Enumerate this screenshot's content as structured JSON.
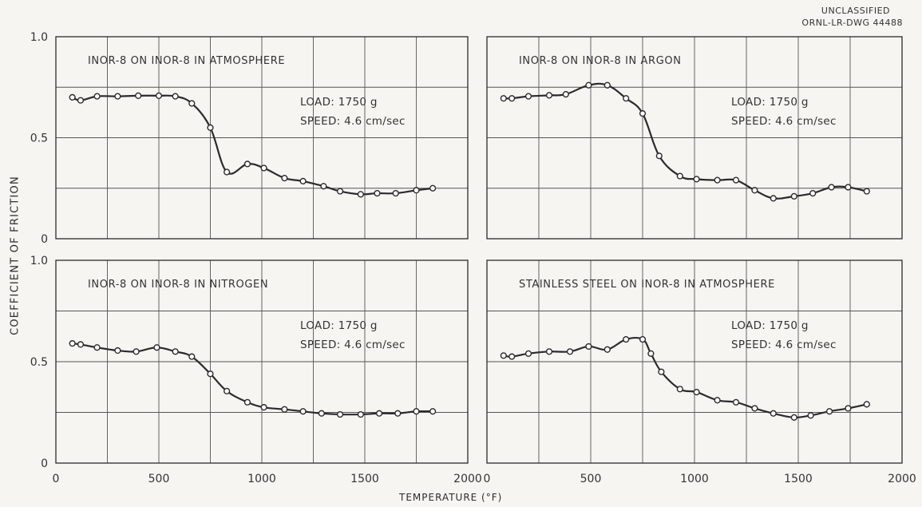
{
  "stamp": {
    "line1": "UNCLASSIFIED",
    "line2": "ORNL-LR-DWG 44488"
  },
  "ylabel": "COEFFICIENT OF FRICTION",
  "xlabel": "TEMPERATURE (°F)",
  "colors": {
    "background": "#f6f5f1",
    "ink": "#2b2b2b",
    "grid": "#555555"
  },
  "chart_data": [
    {
      "type": "line",
      "title": "INOR-8 ON INOR-8 IN ATMOSPHERE",
      "annotation": {
        "load": "LOAD: 1750 g",
        "speed": "SPEED: 4.6 cm/sec"
      },
      "xlim": [
        0,
        2000
      ],
      "ylim": [
        0,
        1.0
      ],
      "x_ticks": [
        "0",
        "500",
        "1000",
        "1500",
        "2000"
      ],
      "y_ticks": [
        "0",
        "0.5",
        "1.0"
      ],
      "grid": true,
      "x": [
        80,
        120,
        200,
        300,
        400,
        500,
        580,
        660,
        750,
        830,
        930,
        1010,
        1110,
        1200,
        1300,
        1380,
        1480,
        1560,
        1650,
        1750,
        1830
      ],
      "y": [
        0.7,
        0.685,
        0.705,
        0.705,
        0.708,
        0.708,
        0.705,
        0.67,
        0.55,
        0.33,
        0.37,
        0.35,
        0.3,
        0.285,
        0.26,
        0.235,
        0.22,
        0.225,
        0.225,
        0.24,
        0.25
      ]
    },
    {
      "type": "line",
      "title": "INOR-8 ON INOR-8 IN ARGON",
      "annotation": {
        "load": "LOAD: 1750 g",
        "speed": "SPEED: 4.6 cm/sec"
      },
      "xlim": [
        0,
        2000
      ],
      "ylim": [
        0,
        1.0
      ],
      "x_ticks": [
        "0",
        "500",
        "1000",
        "1500",
        "2000"
      ],
      "y_ticks": [
        "0",
        "0.5",
        "1.0"
      ],
      "grid": true,
      "x": [
        80,
        120,
        200,
        300,
        380,
        490,
        580,
        670,
        750,
        830,
        930,
        1010,
        1110,
        1200,
        1290,
        1380,
        1480,
        1570,
        1660,
        1740,
        1830
      ],
      "y": [
        0.695,
        0.695,
        0.705,
        0.71,
        0.715,
        0.76,
        0.76,
        0.695,
        0.62,
        0.41,
        0.31,
        0.295,
        0.29,
        0.29,
        0.24,
        0.2,
        0.21,
        0.225,
        0.255,
        0.255,
        0.235
      ]
    },
    {
      "type": "line",
      "title": "INOR-8 ON INOR-8 IN NITROGEN",
      "annotation": {
        "load": "LOAD: 1750 g",
        "speed": "SPEED: 4.6 cm/sec"
      },
      "xlim": [
        0,
        2000
      ],
      "ylim": [
        0,
        1.0
      ],
      "x_ticks": [
        "0",
        "500",
        "1000",
        "1500",
        "2000"
      ],
      "y_ticks": [
        "0",
        "0.5",
        "1.0"
      ],
      "grid": true,
      "x": [
        80,
        120,
        200,
        300,
        390,
        490,
        580,
        660,
        750,
        830,
        930,
        1010,
        1110,
        1200,
        1290,
        1380,
        1480,
        1570,
        1660,
        1750,
        1830
      ],
      "y": [
        0.59,
        0.585,
        0.57,
        0.555,
        0.55,
        0.57,
        0.55,
        0.525,
        0.44,
        0.355,
        0.3,
        0.275,
        0.265,
        0.255,
        0.245,
        0.24,
        0.24,
        0.245,
        0.245,
        0.255,
        0.255
      ]
    },
    {
      "type": "line",
      "title": "STAINLESS STEEL ON INOR-8 IN ATMOSPHERE",
      "annotation": {
        "load": "LOAD: 1750 g",
        "speed": "SPEED: 4.6 cm/sec"
      },
      "xlim": [
        0,
        2000
      ],
      "ylim": [
        0,
        1.0
      ],
      "x_ticks": [
        "0",
        "500",
        "1000",
        "1500",
        "2000"
      ],
      "y_ticks": [
        "0",
        "0.5",
        "1.0"
      ],
      "grid": true,
      "x": [
        80,
        120,
        200,
        300,
        400,
        490,
        580,
        670,
        750,
        790,
        840,
        930,
        1010,
        1110,
        1200,
        1290,
        1380,
        1480,
        1560,
        1650,
        1740,
        1830
      ],
      "y": [
        0.53,
        0.525,
        0.54,
        0.55,
        0.55,
        0.575,
        0.56,
        0.61,
        0.61,
        0.54,
        0.45,
        0.365,
        0.35,
        0.31,
        0.3,
        0.27,
        0.245,
        0.225,
        0.235,
        0.255,
        0.27,
        0.29
      ]
    }
  ]
}
